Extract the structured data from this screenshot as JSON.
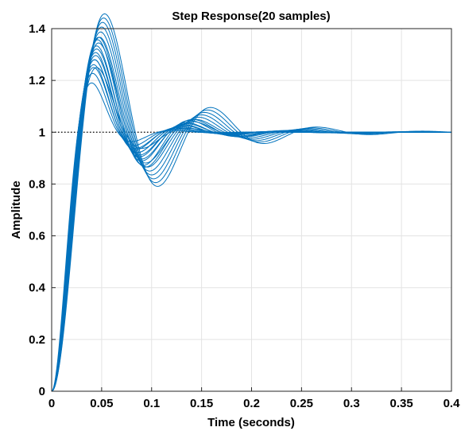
{
  "chart_data": {
    "type": "line",
    "title": "Step Response(20 samples)",
    "xlabel": "Time (seconds)",
    "ylabel": "Amplitude",
    "xlim": [
      0,
      0.4
    ],
    "ylim": [
      0,
      1.4
    ],
    "xticks": [
      "0",
      "0.05",
      "0.1",
      "0.15",
      "0.2",
      "0.25",
      "0.3",
      "0.35",
      "0.4"
    ],
    "yticks": [
      "0",
      "0.2",
      "0.4",
      "0.6",
      "0.8",
      "1",
      "1.2",
      "1.4"
    ],
    "grid": true,
    "line_color": "#0072BD",
    "reference_line": {
      "y": 1,
      "style": "dotted",
      "color": "#000000"
    },
    "series": [
      {
        "peak_time": 0.04,
        "peak": 1.21,
        "undershoot": 0.96
      },
      {
        "peak_time": 0.041,
        "peak": 1.22,
        "undershoot": 0.95
      },
      {
        "peak_time": 0.042,
        "peak": 1.23,
        "undershoot": 0.94
      },
      {
        "peak_time": 0.042,
        "peak": 1.24,
        "undershoot": 0.94
      },
      {
        "peak_time": 0.043,
        "peak": 1.25,
        "undershoot": 0.93
      },
      {
        "peak_time": 0.043,
        "peak": 1.25,
        "undershoot": 0.93
      },
      {
        "peak_time": 0.044,
        "peak": 1.26,
        "undershoot": 0.92
      },
      {
        "peak_time": 0.044,
        "peak": 1.27,
        "undershoot": 0.92
      },
      {
        "peak_time": 0.045,
        "peak": 1.27,
        "undershoot": 0.91
      },
      {
        "peak_time": 0.045,
        "peak": 1.28,
        "undershoot": 0.91
      },
      {
        "peak_time": 0.046,
        "peak": 1.28,
        "undershoot": 0.9
      },
      {
        "peak_time": 0.047,
        "peak": 1.29,
        "undershoot": 0.9
      },
      {
        "peak_time": 0.047,
        "peak": 1.3,
        "undershoot": 0.89
      },
      {
        "peak_time": 0.048,
        "peak": 1.3,
        "undershoot": 0.89
      },
      {
        "peak_time": 0.049,
        "peak": 1.31,
        "undershoot": 0.88
      },
      {
        "peak_time": 0.05,
        "peak": 1.32,
        "undershoot": 0.87
      },
      {
        "peak_time": 0.051,
        "peak": 1.33,
        "undershoot": 0.86
      },
      {
        "peak_time": 0.052,
        "peak": 1.34,
        "undershoot": 0.85
      },
      {
        "peak_time": 0.053,
        "peak": 1.35,
        "undershoot": 0.84
      },
      {
        "peak_time": 0.045,
        "peak": 1.2,
        "undershoot": 0.95
      }
    ]
  }
}
